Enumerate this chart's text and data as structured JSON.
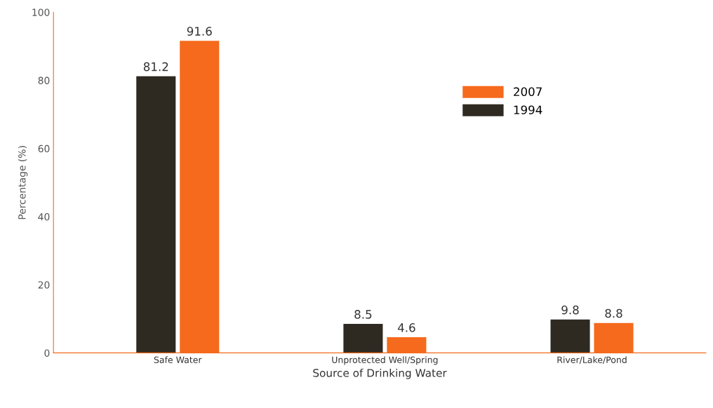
{
  "chart_data": {
    "type": "bar",
    "xlabel": "Source of Drinking Water",
    "ylabel": "Percentage (%)",
    "categories": [
      "Safe Water",
      "Unprotected Well/Spring",
      "River/Lake/Pond"
    ],
    "series": [
      {
        "name": "1994",
        "color": "#2e2a22",
        "values": [
          81.2,
          8.5,
          9.8
        ]
      },
      {
        "name": "2007",
        "color": "#f56a1c",
        "values": [
          91.6,
          4.6,
          8.8
        ]
      }
    ],
    "ylim": [
      0,
      100
    ],
    "yticks": [
      0,
      20,
      40,
      60,
      80,
      100
    ],
    "grid": false,
    "legend": "top right",
    "data_labels": true
  }
}
